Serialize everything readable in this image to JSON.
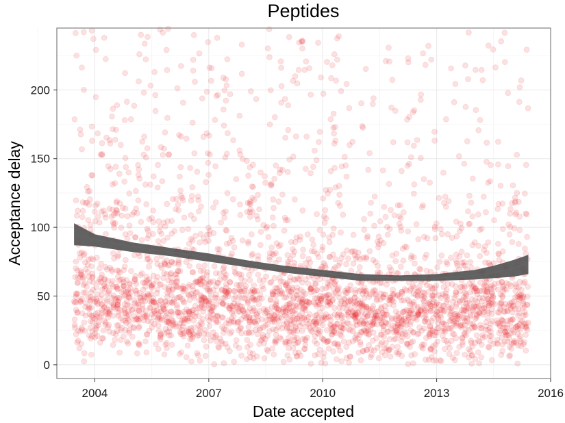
{
  "chart_data": {
    "type": "scatter",
    "title": "Peptides",
    "xlabel": "Date accepted",
    "ylabel": "Acceptance delay",
    "x_scale": "date",
    "xlim": [
      "2003-01-01",
      "2016-01-01"
    ],
    "ylim": [
      -10,
      245
    ],
    "x_ticks": [
      "2004",
      "2007",
      "2010",
      "2013",
      "2016"
    ],
    "x_tick_values": [
      "2004-01-01",
      "2007-01-01",
      "2010-01-01",
      "2013-01-01",
      "2016-01-01"
    ],
    "y_ticks": [
      0,
      50,
      100,
      150,
      200
    ],
    "grid": true,
    "legend": "none",
    "point_color": "#e41a1c",
    "point_opacity": 0.13,
    "smooth_color": "#555555",
    "points": {
      "x_range": [
        "2003-06-15",
        "2015-06-01"
      ],
      "y_range": [
        0,
        245
      ],
      "approx_count": 3000,
      "density_note": "most points between 10 and 80 days"
    },
    "smooth": {
      "x": [
        "2003-06-15",
        "2004-01-01",
        "2005-01-01",
        "2006-01-01",
        "2007-01-01",
        "2008-01-01",
        "2009-01-01",
        "2010-01-01",
        "2011-01-01",
        "2012-01-01",
        "2013-01-01",
        "2014-01-01",
        "2014-07-01",
        "2015-01-01",
        "2015-06-01"
      ],
      "upper": [
        103,
        95,
        89,
        85,
        81,
        76,
        72,
        69,
        66,
        65,
        66,
        69,
        72,
        76,
        80
      ],
      "fit": [
        95,
        91,
        86,
        82,
        78,
        74,
        70,
        67,
        64,
        63,
        63,
        65,
        67,
        70,
        74
      ],
      "lower": [
        87,
        86,
        82,
        79,
        75,
        71,
        67,
        64,
        61,
        61,
        61,
        62,
        63,
        64,
        66
      ]
    }
  }
}
